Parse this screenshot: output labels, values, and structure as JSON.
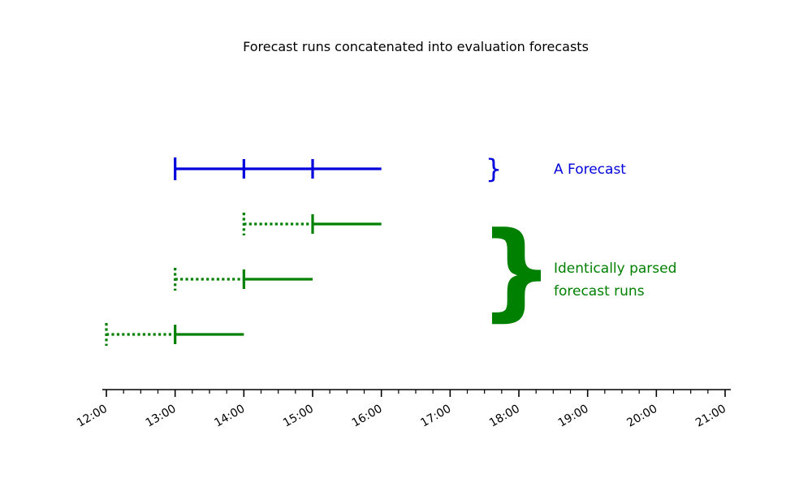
{
  "chart_data": {
    "type": "timeline",
    "title": "Forecast runs concatenated into evaluation forecasts",
    "xlim": [
      "12:00",
      "21:00"
    ],
    "x_tick_labels": [
      "12:00",
      "13:00",
      "14:00",
      "15:00",
      "16:00",
      "17:00",
      "18:00",
      "19:00",
      "20:00",
      "21:00"
    ],
    "minor_ticks_per_hour": 4,
    "colors": {
      "forecast": "#0000dd",
      "runs": "#008000",
      "axis": "#000000"
    },
    "rows": [
      {
        "group": "forecast",
        "color": "#0000dd",
        "dotted": null,
        "solid": [
          "13:00",
          "16:00"
        ],
        "ticks": [
          "13:00",
          "14:00",
          "15:00"
        ]
      },
      {
        "group": "runs",
        "color": "#008000",
        "dotted": [
          "14:00",
          "15:00"
        ],
        "solid": [
          "15:00",
          "16:00"
        ],
        "ticks": [
          "15:00"
        ]
      },
      {
        "group": "runs",
        "color": "#008000",
        "dotted": [
          "13:00",
          "14:00"
        ],
        "solid": [
          "14:00",
          "15:00"
        ],
        "ticks": [
          "14:00"
        ]
      },
      {
        "group": "runs",
        "color": "#008000",
        "dotted": [
          "12:00",
          "13:00"
        ],
        "solid": [
          "13:00",
          "14:00"
        ],
        "ticks": [
          "13:00"
        ]
      }
    ],
    "annotations": [
      {
        "group": "forecast",
        "brace": "}",
        "color": "#0000dd",
        "lines": [
          "A Forecast"
        ]
      },
      {
        "group": "runs",
        "brace": "}",
        "color": "#008000",
        "lines": [
          "Identically parsed",
          "forecast runs"
        ]
      }
    ]
  }
}
